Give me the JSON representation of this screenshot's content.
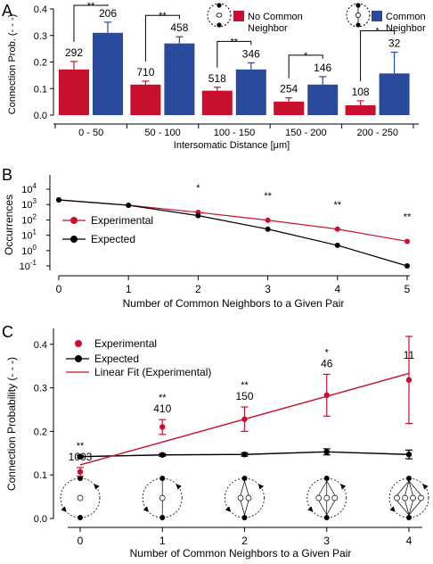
{
  "panel_letters": {
    "a": "A",
    "b": "B",
    "c": "C"
  },
  "chart_data": [
    {
      "panel": "A",
      "type": "bar",
      "categories": [
        "0 - 50",
        "50 - 100",
        "100 - 150",
        "150 - 200",
        "200 - 250"
      ],
      "series": [
        {
          "name": "No Common Neighbor",
          "color": "#c8102e",
          "values": [
            0.172,
            0.115,
            0.092,
            0.051,
            0.037
          ],
          "errors": [
            0.03,
            0.013,
            0.013,
            0.014,
            0.017
          ],
          "counts": [
            "292",
            "710",
            "518",
            "254",
            "108"
          ]
        },
        {
          "name": "Common Neighbor",
          "color": "#2a4b9b",
          "values": [
            0.31,
            0.27,
            0.172,
            0.115,
            0.157
          ],
          "errors": [
            0.04,
            0.025,
            0.025,
            0.03,
            0.08
          ],
          "counts": [
            "206",
            "458",
            "346",
            "146",
            "32"
          ]
        }
      ],
      "significance": [
        "**",
        "**",
        "**",
        "*",
        "*"
      ],
      "ylabel": "Connection Prob. (- - -)",
      "xlabel": "Intersomatic Distance [μm]",
      "ylim": [
        0,
        0.4
      ],
      "yticks": [
        "0.0",
        "0.1",
        "0.2",
        "0.3",
        "0.4"
      ]
    },
    {
      "panel": "B",
      "type": "line",
      "yscale": "log",
      "x": [
        0,
        1,
        2,
        3,
        4,
        5
      ],
      "series": [
        {
          "name": "Experimental",
          "color": "#c8102e",
          "values": [
            2000,
            900,
            310,
            95,
            25,
            4
          ]
        },
        {
          "name": "Expected",
          "color": "#000000",
          "values": [
            2000,
            900,
            190,
            25,
            2.2,
            0.1
          ]
        }
      ],
      "significance": [
        "",
        "",
        "*",
        "**",
        "**",
        "**"
      ],
      "ylabel": "Occurrences",
      "xlabel": "Number of Common Neighbors to a Given Pair",
      "ylim": [
        0.1,
        10000
      ],
      "ytick_values": [
        0.1,
        1,
        10,
        100,
        1000,
        10000
      ],
      "ytick_exponents": [
        "-1",
        "0",
        "1",
        "2",
        "3",
        "4"
      ],
      "ytick_base": "10",
      "xticks": [
        "0",
        "1",
        "2",
        "3",
        "4",
        "5"
      ]
    },
    {
      "panel": "C",
      "type": "scatter",
      "x": [
        0,
        1,
        2,
        3,
        4
      ],
      "series": [
        {
          "name": "Experimental",
          "color": "#c8102e",
          "values": [
            0.107,
            0.21,
            0.228,
            0.283,
            0.318
          ],
          "errors": [
            0.01,
            0.017,
            0.028,
            0.048,
            0.1
          ]
        },
        {
          "name": "Expected",
          "color": "#000000",
          "values": [
            0.142,
            0.146,
            0.147,
            0.153,
            0.147
          ],
          "errors": [
            0.003,
            0.003,
            0.004,
            0.007,
            0.01
          ]
        },
        {
          "name": "Linear Fit (Experimental)",
          "color": "#c8102e",
          "type": "line",
          "x": [
            0,
            4
          ],
          "values": [
            0.123,
            0.333
          ]
        }
      ],
      "counts": [
        "1003",
        "410",
        "150",
        "46",
        "11"
      ],
      "significance": [
        "**",
        "**",
        "**",
        "*",
        ""
      ],
      "ylabel": "Connection Probability (- - -)",
      "xlabel": "Number of Common Neighbors to a Given Pair",
      "ylim": [
        0,
        0.42
      ],
      "yticks": [
        "0.0",
        "0.1",
        "0.2",
        "0.3",
        "0.4"
      ],
      "xticks": [
        "0",
        "1",
        "2",
        "3",
        "4"
      ]
    }
  ]
}
